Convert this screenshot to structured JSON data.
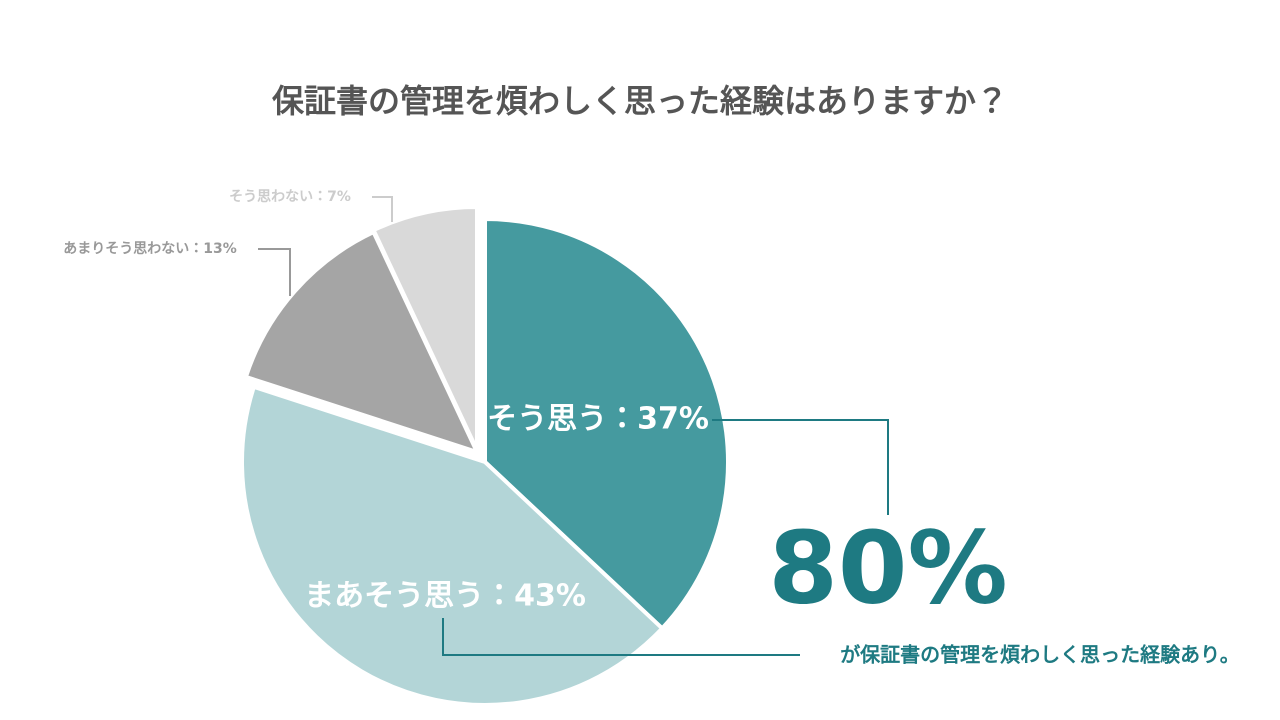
{
  "chart_data": {
    "type": "pie",
    "title": "保証書の管理を煩わしく思った経験はありますか？",
    "values": [
      37,
      43,
      13,
      7
    ],
    "value_labels": [
      "そう思う：37%",
      "まあそう思う：43%",
      "あまりそう思わない：13%",
      "そう思わない：7%"
    ],
    "colors": [
      "#459a9f",
      "#b3d5d7",
      "#a5a5a5",
      "#d9d9d9"
    ],
    "annotations": [
      "80%",
      "が保証書の管理を煩わしく思った経験あり。"
    ]
  }
}
